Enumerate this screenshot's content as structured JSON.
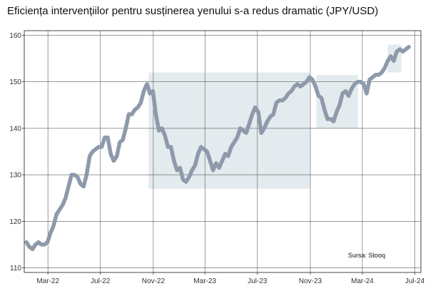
{
  "chart_data": {
    "type": "line",
    "title": "Eficiența intervențiilor pentru susținerea yenului s-a redus dramatic (JPY/USD)",
    "source": "Sursa: Stooq",
    "xlabel": "",
    "ylabel": "",
    "ylim": [
      109,
      161
    ],
    "xlim": [
      "2022-01-05",
      "2024-07-15"
    ],
    "y_ticks": [
      110,
      120,
      130,
      140,
      150,
      160
    ],
    "x_ticks": [
      {
        "date": "2022-03-01",
        "label": "Mar-22"
      },
      {
        "date": "2022-07-01",
        "label": "Jul-22"
      },
      {
        "date": "2022-11-01",
        "label": "Nov-22"
      },
      {
        "date": "2023-03-01",
        "label": "Mar-23"
      },
      {
        "date": "2023-07-01",
        "label": "Jul-23"
      },
      {
        "date": "2023-11-01",
        "label": "Nov-23"
      },
      {
        "date": "2024-03-01",
        "label": "Mar-24"
      },
      {
        "date": "2024-07-01",
        "label": "Jul-24"
      }
    ],
    "grid": true,
    "line_color": "#8e9aab",
    "shade_color": "#e3ebee",
    "shaded_regions": [
      {
        "x_start": "2022-10-21",
        "x_end": "2023-10-31",
        "y_low": 127,
        "y_high": 152
      },
      {
        "x_start": "2023-11-15",
        "x_end": "2024-02-20",
        "y_low": 140,
        "y_high": 151.5
      },
      {
        "x_start": "2024-04-29",
        "x_end": "2024-05-31",
        "y_low": 152,
        "y_high": 158
      }
    ],
    "series": [
      {
        "x": [
          "2022-01-10",
          "2022-01-17",
          "2022-01-24",
          "2022-01-31",
          "2022-02-07",
          "2022-02-14",
          "2022-02-21",
          "2022-02-28",
          "2022-03-07",
          "2022-03-14",
          "2022-03-21",
          "2022-03-28",
          "2022-04-04",
          "2022-04-11",
          "2022-04-18",
          "2022-04-25",
          "2022-05-02",
          "2022-05-09",
          "2022-05-16",
          "2022-05-23",
          "2022-05-30",
          "2022-06-06",
          "2022-06-13",
          "2022-06-20",
          "2022-06-27",
          "2022-07-04",
          "2022-07-11",
          "2022-07-18",
          "2022-07-25",
          "2022-08-01",
          "2022-08-08",
          "2022-08-15",
          "2022-08-22",
          "2022-08-29",
          "2022-09-05",
          "2022-09-12",
          "2022-09-19",
          "2022-09-26",
          "2022-10-03",
          "2022-10-10",
          "2022-10-17",
          "2022-10-21",
          "2022-10-24",
          "2022-10-31",
          "2022-11-07",
          "2022-11-14",
          "2022-11-21",
          "2022-11-28",
          "2022-12-05",
          "2022-12-12",
          "2022-12-19",
          "2022-12-26",
          "2023-01-02",
          "2023-01-09",
          "2023-01-16",
          "2023-01-23",
          "2023-01-30",
          "2023-02-06",
          "2023-02-13",
          "2023-02-20",
          "2023-02-27",
          "2023-03-06",
          "2023-03-13",
          "2023-03-20",
          "2023-03-27",
          "2023-04-03",
          "2023-04-10",
          "2023-04-17",
          "2023-04-24",
          "2023-05-01",
          "2023-05-08",
          "2023-05-15",
          "2023-05-22",
          "2023-05-29",
          "2023-06-05",
          "2023-06-12",
          "2023-06-19",
          "2023-06-26",
          "2023-07-03",
          "2023-07-10",
          "2023-07-17",
          "2023-07-24",
          "2023-07-31",
          "2023-08-07",
          "2023-08-14",
          "2023-08-21",
          "2023-08-28",
          "2023-09-04",
          "2023-09-11",
          "2023-09-18",
          "2023-09-25",
          "2023-10-02",
          "2023-10-09",
          "2023-10-16",
          "2023-10-23",
          "2023-10-30",
          "2023-11-06",
          "2023-11-13",
          "2023-11-20",
          "2023-11-27",
          "2023-12-04",
          "2023-12-11",
          "2023-12-18",
          "2023-12-25",
          "2024-01-01",
          "2024-01-08",
          "2024-01-15",
          "2024-01-22",
          "2024-01-29",
          "2024-02-05",
          "2024-02-12",
          "2024-02-19",
          "2024-02-26",
          "2024-03-04",
          "2024-03-11",
          "2024-03-18",
          "2024-03-25",
          "2024-04-01",
          "2024-04-08",
          "2024-04-15",
          "2024-04-22",
          "2024-04-29",
          "2024-05-06",
          "2024-05-13",
          "2024-05-20",
          "2024-05-27",
          "2024-06-03",
          "2024-06-10",
          "2024-06-17"
        ],
        "values": [
          115.5,
          114.5,
          114.0,
          115.0,
          115.5,
          115.0,
          115.0,
          115.5,
          117.5,
          119.0,
          121.5,
          122.5,
          123.5,
          125.0,
          127.5,
          130.0,
          130.0,
          129.5,
          128.0,
          127.5,
          130.0,
          134.0,
          135.0,
          135.5,
          136.0,
          136.0,
          138.0,
          138.0,
          134.5,
          133.0,
          134.0,
          137.0,
          137.5,
          140.0,
          143.0,
          143.0,
          144.0,
          144.5,
          145.5,
          148.0,
          149.5,
          148.5,
          147.5,
          148.0,
          143.0,
          139.5,
          140.0,
          138.5,
          136.0,
          136.0,
          133.0,
          131.0,
          131.5,
          129.0,
          128.5,
          129.5,
          131.0,
          132.0,
          134.5,
          136.0,
          135.5,
          135.0,
          133.0,
          131.0,
          132.5,
          131.5,
          133.0,
          134.5,
          134.0,
          136.0,
          137.0,
          138.0,
          140.0,
          139.5,
          139.0,
          141.0,
          143.0,
          144.5,
          143.5,
          139.0,
          140.0,
          141.5,
          142.5,
          143.0,
          145.5,
          146.0,
          146.0,
          146.5,
          147.5,
          148.0,
          149.0,
          149.5,
          149.0,
          149.5,
          150.0,
          151.0,
          150.5,
          149.0,
          147.0,
          146.5,
          144.0,
          142.0,
          142.0,
          141.5,
          143.5,
          145.0,
          147.5,
          148.0,
          147.0,
          148.5,
          149.5,
          150.0,
          150.0,
          149.5,
          147.5,
          150.5,
          151.0,
          151.5,
          151.5,
          152.0,
          153.0,
          154.5,
          155.5,
          154.5,
          156.5,
          157.0,
          156.5,
          157.0,
          157.5
        ]
      }
    ]
  }
}
